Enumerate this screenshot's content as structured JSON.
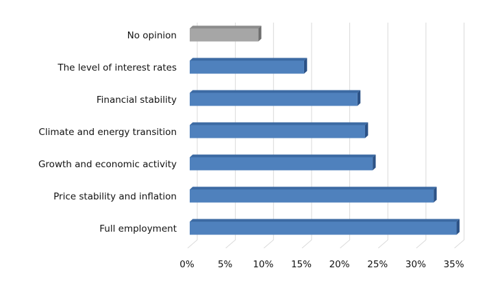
{
  "chart_data": {
    "type": "bar",
    "orientation": "horizontal",
    "style": "3d",
    "categories": [
      "No opinion",
      "The level of interest rates",
      "Financial stability",
      "Climate and energy transition",
      "Growth and economic activity",
      "Price stability and inflation",
      "Full employment"
    ],
    "values": [
      9,
      15,
      22,
      23,
      24,
      32,
      35
    ],
    "bar_colors": [
      "#a6a6a6",
      "#4f81bd",
      "#4f81bd",
      "#4f81bd",
      "#4f81bd",
      "#4f81bd",
      "#4f81bd"
    ],
    "xlim": [
      0,
      35
    ],
    "x_ticks": [
      "0%",
      "5%",
      "10%",
      "15%",
      "20%",
      "25%",
      "30%",
      "35%"
    ],
    "grid": true,
    "legend": "none",
    "title": "",
    "xlabel": "",
    "ylabel": ""
  }
}
